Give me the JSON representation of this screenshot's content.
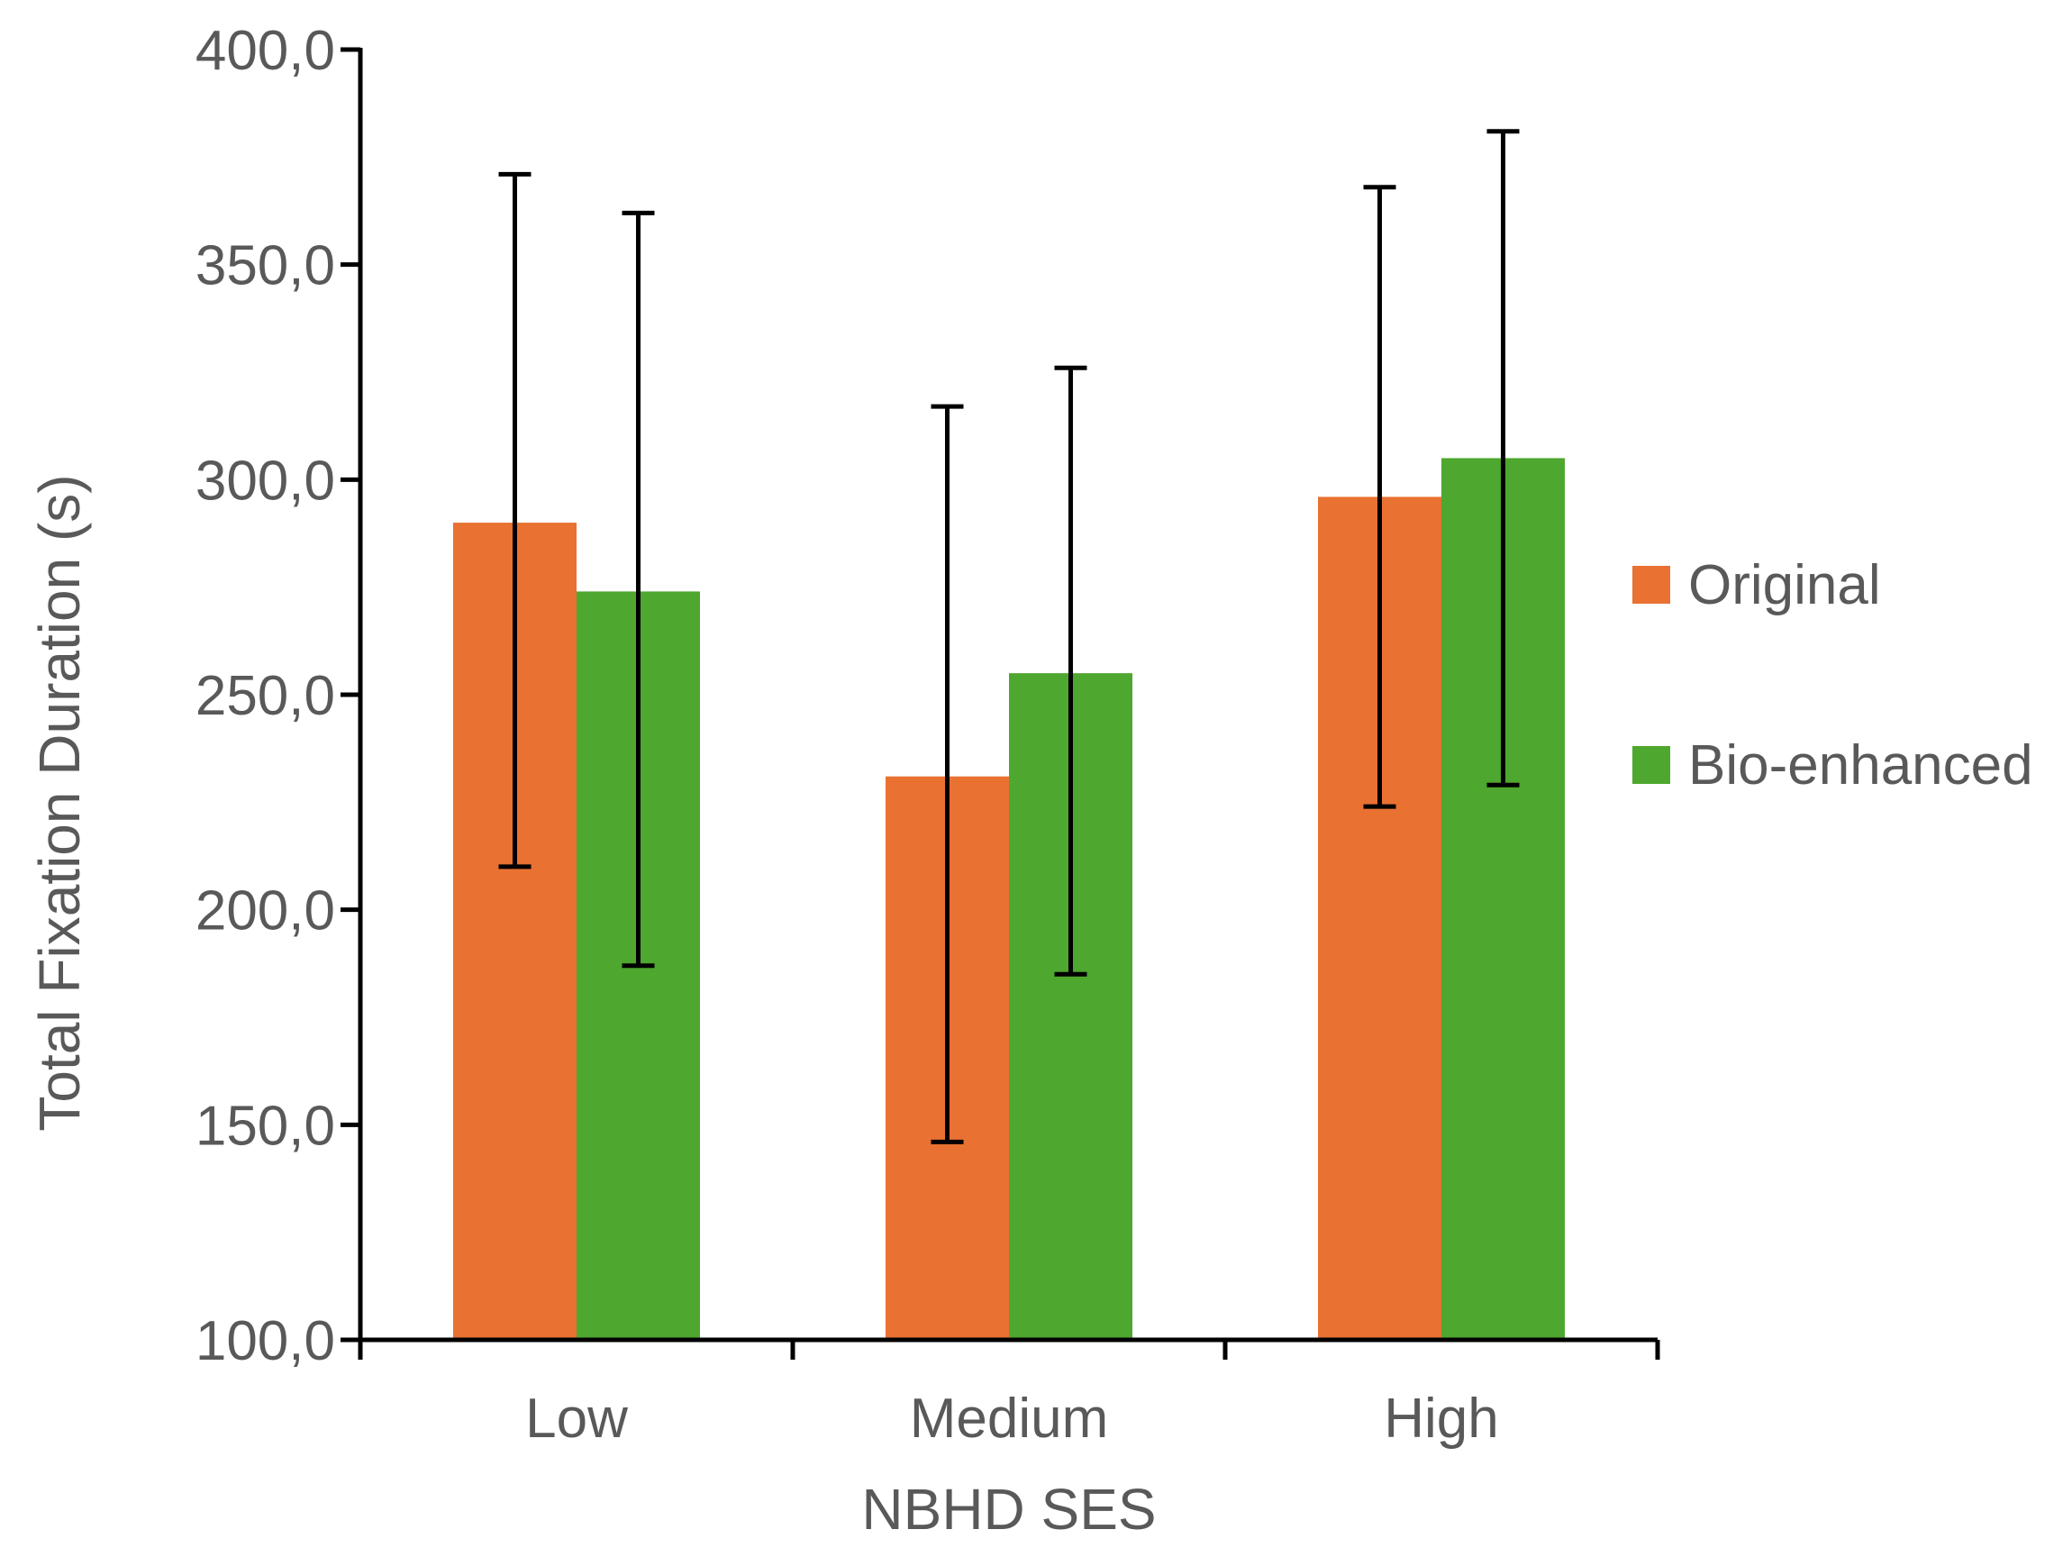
{
  "chart_data": {
    "type": "bar",
    "title": "",
    "xlabel": "NBHD SES",
    "ylabel": "Total Fixation Duration (s)",
    "categories": [
      "Low",
      "Medium",
      "High"
    ],
    "ylim": [
      100,
      400
    ],
    "yticks": [
      100,
      150,
      200,
      250,
      300,
      350,
      400
    ],
    "ytick_labels": [
      "100,0",
      "150,0",
      "200,0",
      "250,0",
      "300,0",
      "350,0",
      "400,0"
    ],
    "series": [
      {
        "name": "Original",
        "color": "#E97132",
        "values": [
          290,
          231,
          296
        ],
        "error_low": [
          210,
          146,
          224
        ],
        "error_high": [
          371,
          317,
          368
        ]
      },
      {
        "name": "Bio-enhanced",
        "color": "#4EA72E",
        "values": [
          274,
          255,
          305
        ],
        "error_low": [
          187,
          185,
          229
        ],
        "error_high": [
          362,
          326,
          381
        ]
      }
    ],
    "legend": {
      "position": "right",
      "entries": [
        "Original",
        "Bio-enhanced"
      ]
    },
    "grid": false,
    "axis_color": "#000000",
    "error_bar_color": "#000000"
  }
}
